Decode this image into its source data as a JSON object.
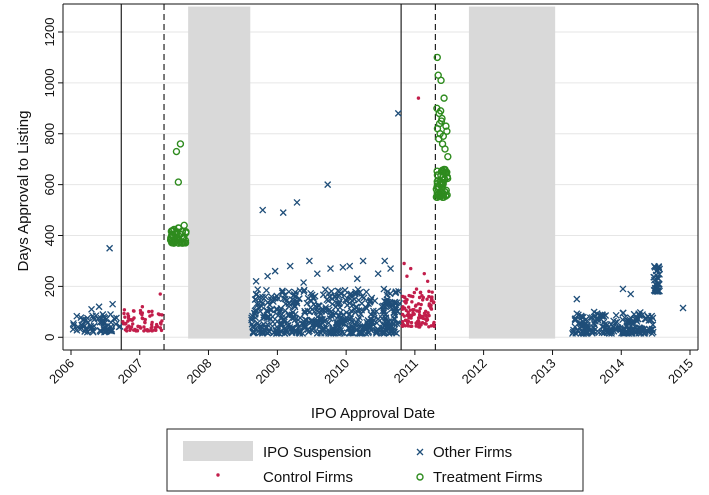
{
  "chart_data": {
    "type": "scatter",
    "xlabel": "IPO Approval Date",
    "ylabel": "Days Approval to Listing",
    "xlim": [
      "2006-01-01",
      "2015-01-01"
    ],
    "ylim": [
      -50,
      1310
    ],
    "x_ticks": [
      "2006",
      "2007",
      "2008",
      "2009",
      "2010",
      "2011",
      "2012",
      "2013",
      "2014",
      "2015"
    ],
    "y_ticks": [
      0,
      200,
      400,
      600,
      800,
      1000,
      1200
    ],
    "grid": true,
    "legend_position": "bottom",
    "suspensions": [
      {
        "start": "2007-09-15",
        "end": "2008-08-10"
      },
      {
        "start": "2011-10-15",
        "end": "2013-01-15"
      }
    ],
    "solid_lines": [
      "2006-09-25",
      "2010-10-20"
    ],
    "dashed_lines": [
      "2007-05-10",
      "2011-04-20"
    ],
    "colors": {
      "other": "#1f4e79",
      "control": "#c21e4b",
      "treatment": "#2e8b1e",
      "suspension": "#d9d9d9",
      "grid": "#e6e6e6"
    },
    "series": [
      {
        "name": "Other Firms",
        "marker": "x",
        "dense_clusters": [
          {
            "start": "2006-01-10",
            "end": "2006-09-20",
            "y_min": 20,
            "y_max": 90,
            "n": 70
          },
          {
            "start": "2008-08-15",
            "end": "2010-10-15",
            "y_min": 15,
            "y_max": 190,
            "n": 520
          },
          {
            "start": "2013-04-15",
            "end": "2014-06-20",
            "y_min": 15,
            "y_max": 100,
            "n": 190
          },
          {
            "start": "2014-06-20",
            "end": "2014-07-25",
            "y_min": 180,
            "y_max": 280,
            "n": 35
          }
        ],
        "points": [
          [
            "2006-07-25",
            350
          ],
          [
            "2006-08-10",
            130
          ],
          [
            "2006-04-20",
            110
          ],
          [
            "2006-05-30",
            120
          ],
          [
            "2008-10-15",
            500
          ],
          [
            "2009-02-01",
            490
          ],
          [
            "2009-04-15",
            530
          ],
          [
            "2009-09-25",
            600
          ],
          [
            "2010-10-05",
            880
          ],
          [
            "2008-09-10",
            220
          ],
          [
            "2008-12-20",
            260
          ],
          [
            "2009-03-10",
            280
          ],
          [
            "2009-06-20",
            300
          ],
          [
            "2009-10-10",
            270
          ],
          [
            "2010-01-20",
            280
          ],
          [
            "2010-04-01",
            300
          ],
          [
            "2010-06-20",
            250
          ],
          [
            "2010-07-25",
            300
          ],
          [
            "2010-08-25",
            270
          ],
          [
            "2008-11-10",
            240
          ],
          [
            "2009-08-01",
            250
          ],
          [
            "2014-01-10",
            190
          ],
          [
            "2014-02-20",
            170
          ],
          [
            "2014-11-25",
            115
          ],
          [
            "2013-05-10",
            150
          ],
          [
            "2009-12-15",
            275
          ],
          [
            "2010-03-01",
            230
          ],
          [
            "2009-05-20",
            215
          ]
        ]
      },
      {
        "name": "Control Firms",
        "marker": "dot",
        "dense_clusters": [
          {
            "start": "2006-10-01",
            "end": "2007-05-05",
            "y_min": 25,
            "y_max": 110,
            "n": 75
          },
          {
            "start": "2010-10-25",
            "end": "2011-04-15",
            "y_min": 40,
            "y_max": 190,
            "n": 115
          }
        ],
        "points": [
          [
            "2011-01-20",
            940
          ],
          [
            "2010-11-05",
            290
          ],
          [
            "2010-12-10",
            270
          ],
          [
            "2010-11-20",
            240
          ],
          [
            "2011-02-20",
            250
          ],
          [
            "2007-04-20",
            170
          ],
          [
            "2007-01-15",
            120
          ],
          [
            "2011-03-10",
            220
          ]
        ]
      },
      {
        "name": "Treatment Firms",
        "marker": "circle",
        "dense_clusters": [
          {
            "start": "2007-06-10",
            "end": "2007-09-05",
            "y_min": 370,
            "y_max": 430,
            "n": 40
          },
          {
            "start": "2011-04-25",
            "end": "2011-06-25",
            "y_min": 550,
            "y_max": 660,
            "n": 55
          }
        ],
        "points": [
          [
            "2007-07-15",
            730
          ],
          [
            "2007-08-05",
            760
          ],
          [
            "2007-07-25",
            610
          ],
          [
            "2007-06-25",
            420
          ],
          [
            "2007-08-25",
            440
          ],
          [
            "2007-09-01",
            380
          ],
          [
            "2007-07-01",
            370
          ],
          [
            "2011-04-30",
            1100
          ],
          [
            "2011-05-05",
            1030
          ],
          [
            "2011-05-20",
            1010
          ],
          [
            "2011-06-05",
            940
          ],
          [
            "2011-05-10",
            880
          ],
          [
            "2011-05-25",
            860
          ],
          [
            "2011-05-01",
            820
          ],
          [
            "2011-06-15",
            830
          ],
          [
            "2011-05-15",
            800
          ],
          [
            "2011-06-20",
            810
          ],
          [
            "2011-05-08",
            780
          ],
          [
            "2011-05-28",
            760
          ],
          [
            "2011-06-10",
            740
          ],
          [
            "2011-06-25",
            710
          ],
          [
            "2011-04-28",
            900
          ],
          [
            "2011-05-18",
            890
          ],
          [
            "2011-05-12",
            840
          ],
          [
            "2011-06-01",
            790
          ],
          [
            "2011-05-22",
            850
          ]
        ]
      }
    ],
    "legend": [
      {
        "label": "IPO Suspension",
        "swatch": "rect"
      },
      {
        "label": "Other Firms",
        "swatch": "x"
      },
      {
        "label": "Control Firms",
        "swatch": "dot"
      },
      {
        "label": "Treatment Firms",
        "swatch": "circle"
      }
    ]
  }
}
